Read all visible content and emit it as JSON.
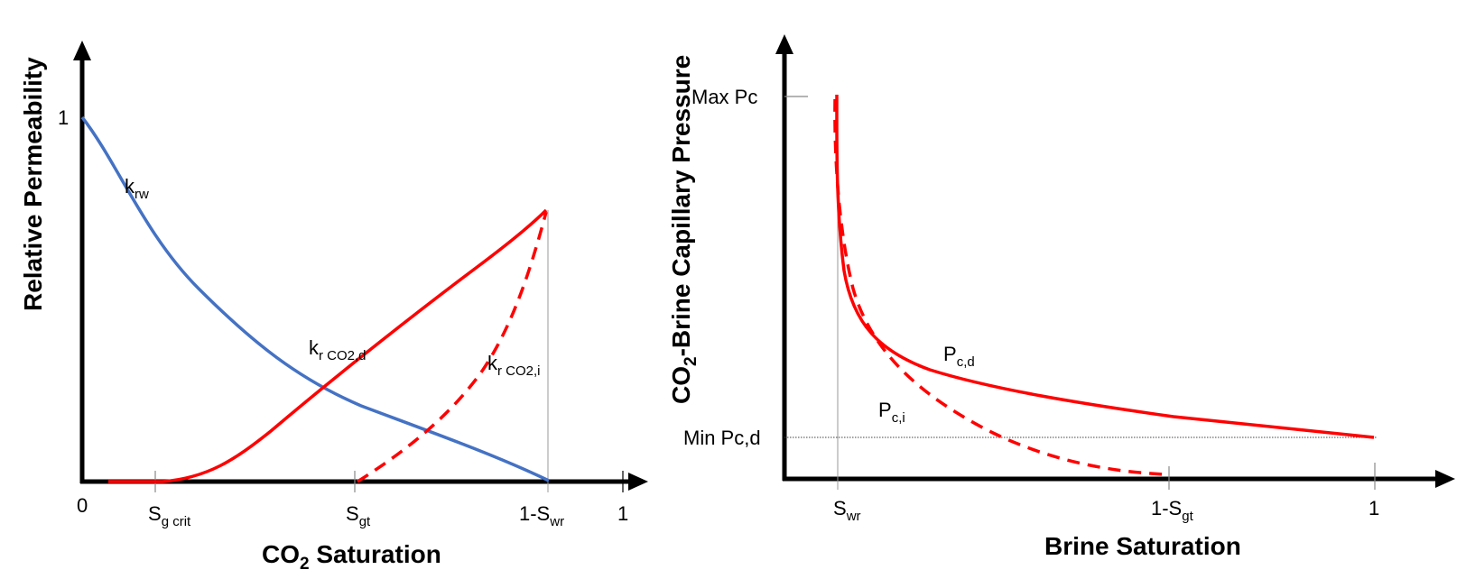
{
  "left_plot": {
    "x_title": "CO",
    "x_title_sub": "2",
    "x_title_rest": " Saturation",
    "y_title": "Relative Permeability",
    "origin_label": "0",
    "y_one_label": "1",
    "x_one_label": "1",
    "ticks": {
      "sgcrit_main": "S",
      "sgcrit_sub": "g crit",
      "sgt_main": "S",
      "sgt_sub": "gt",
      "swr_main": "1-S",
      "swr_sub": "wr"
    },
    "curves": {
      "krw_main": "k",
      "krw_sub": "rw",
      "krd_main": "k",
      "krd_sub": "r CO2,d",
      "kri_main": "k",
      "kri_sub": "r CO2,i"
    }
  },
  "right_plot": {
    "x_title": "Brine Saturation",
    "y_title_main": "CO",
    "y_title_sub": "2",
    "y_title_rest": "-Brine Capillary Pressure",
    "max_pc_label": "Max Pc",
    "min_pc_label": "Min Pc,d",
    "ticks": {
      "swr_main": "S",
      "swr_sub": "wr",
      "sgt_main": "1-S",
      "sgt_sub": "gt",
      "one": "1"
    },
    "curves": {
      "pcd_main": "P",
      "pcd_sub": "c,d",
      "pci_main": "P",
      "pci_sub": "c,i"
    }
  },
  "colors": {
    "krw": "#4472c4",
    "co2": "#ff0000",
    "axis": "#000000"
  }
}
